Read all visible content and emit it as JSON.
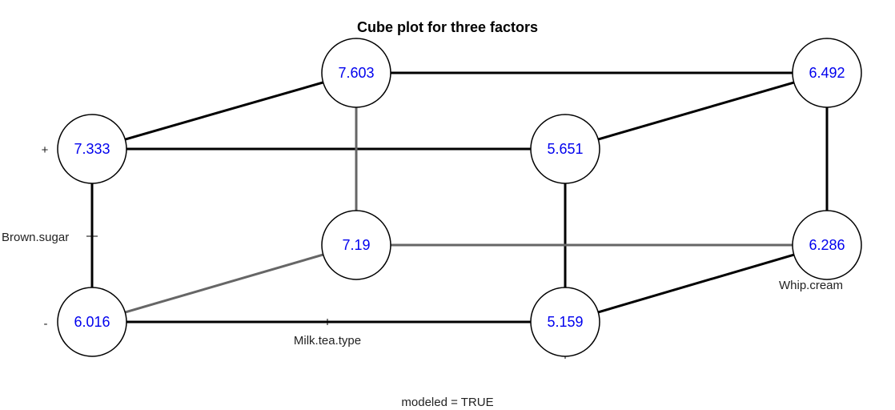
{
  "chart_data": {
    "type": "cube",
    "title": "Cube plot for three factors",
    "factors": {
      "vertical": "Brown.sugar",
      "horizontal": "Milk.tea.type",
      "depth": "Whip.cream"
    },
    "level_labels": {
      "high": "+",
      "low": "-"
    },
    "footer": "modeled = TRUE",
    "points": [
      {
        "milk_tea_type": "-",
        "brown_sugar": "-",
        "whip_cream": "-",
        "value": "6.016"
      },
      {
        "milk_tea_type": "+",
        "brown_sugar": "-",
        "whip_cream": "-",
        "value": "5.159"
      },
      {
        "milk_tea_type": "-",
        "brown_sugar": "+",
        "whip_cream": "-",
        "value": "7.333"
      },
      {
        "milk_tea_type": "+",
        "brown_sugar": "+",
        "whip_cream": "-",
        "value": "5.651"
      },
      {
        "milk_tea_type": "-",
        "brown_sugar": "-",
        "whip_cream": "+",
        "value": "7.19"
      },
      {
        "milk_tea_type": "+",
        "brown_sugar": "-",
        "whip_cream": "+",
        "value": "6.286"
      },
      {
        "milk_tea_type": "-",
        "brown_sugar": "+",
        "whip_cream": "+",
        "value": "7.603"
      },
      {
        "milk_tea_type": "+",
        "brown_sugar": "+",
        "whip_cream": "+",
        "value": "6.492"
      }
    ]
  }
}
